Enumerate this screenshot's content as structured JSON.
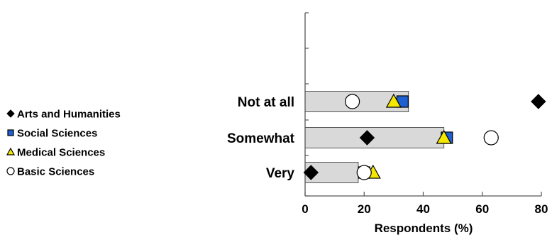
{
  "chart_data": {
    "type": "bar",
    "orientation": "horizontal",
    "categories": [
      "Not at all",
      "Somewhat",
      "Very"
    ],
    "bars": {
      "values": [
        35,
        47,
        18
      ],
      "color": "#d9d9d9"
    },
    "series": [
      {
        "name": "Arts and Humanities",
        "marker": "diamond",
        "color": "#000000",
        "values": [
          79,
          21,
          2
        ]
      },
      {
        "name": "Social Sciences",
        "marker": "square",
        "color": "#1f5fd0",
        "values": [
          33,
          48,
          20
        ]
      },
      {
        "name": "Medical Sciences",
        "marker": "triangle",
        "color": "#f5e800",
        "values": [
          30,
          47,
          23
        ]
      },
      {
        "name": "Basic Sciences",
        "marker": "circle",
        "color": "#ffffff",
        "values": [
          16,
          63,
          20
        ]
      }
    ],
    "xlabel": "Respondents (%)",
    "xlim": [
      0,
      80
    ],
    "xticks": [
      0,
      20,
      40,
      60,
      80
    ],
    "legend_position": "left",
    "grid": false
  }
}
